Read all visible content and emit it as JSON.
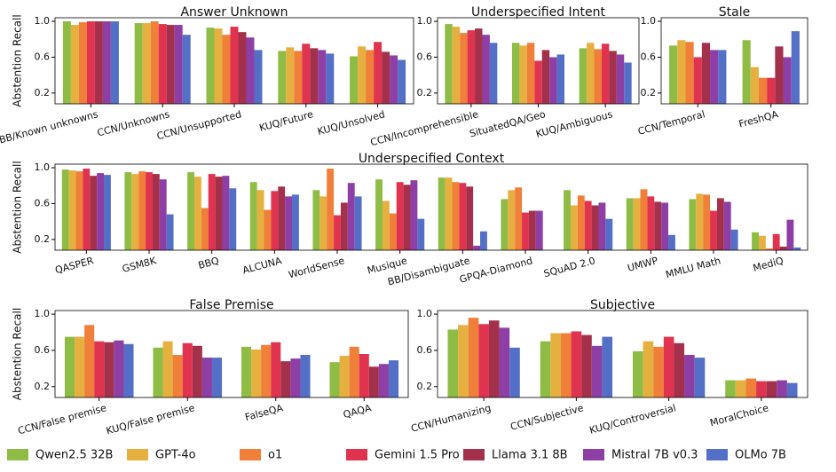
{
  "legend": [
    {
      "name": "Qwen2.5 32B",
      "color": "#8fbc45"
    },
    {
      "name": "GPT-4o",
      "color": "#e6b040"
    },
    {
      "name": "o1",
      "color": "#f07f3a"
    },
    {
      "name": "Gemini 1.5 Pro",
      "color": "#e0334f"
    },
    {
      "name": "Llama 3.1 8B",
      "color": "#a3314b"
    },
    {
      "name": "Mistral 7B v0.3",
      "color": "#8e3fa5"
    },
    {
      "name": "OLMo 7B",
      "color": "#5470c6"
    }
  ],
  "chart_data": [
    {
      "type": "bar",
      "title": "Answer Unknown",
      "ylabel": "Abstention Recall",
      "categories": [
        "BB/Known unknowns",
        "CCN/Unknowns",
        "CCN/Unsupported",
        "KUQ/Future",
        "KUQ/Unsolved"
      ],
      "ylim": [
        0.08,
        1.04
      ],
      "yticks": [
        0.2,
        0.6,
        {
          "value": 1,
          "label": "1.0"
        }
      ],
      "series": [
        {
          "values": [
            1.0,
            0.98,
            0.93,
            0.67,
            0.61
          ]
        },
        {
          "values": [
            0.96,
            0.98,
            0.92,
            0.71,
            0.72
          ]
        },
        {
          "values": [
            0.99,
            1.0,
            0.85,
            0.67,
            0.68
          ]
        },
        {
          "values": [
            1.0,
            0.97,
            0.94,
            0.75,
            0.77
          ]
        },
        {
          "values": [
            1.0,
            0.96,
            0.88,
            0.7,
            0.66
          ]
        },
        {
          "values": [
            1.0,
            0.96,
            0.82,
            0.68,
            0.62
          ]
        },
        {
          "values": [
            1.0,
            0.85,
            0.68,
            0.64,
            0.57
          ]
        }
      ]
    },
    {
      "type": "bar",
      "title": "Underspecified Intent",
      "categories": [
        "CCN/Incomprehensible",
        "SituatedQA/Geo",
        "KUQ/Ambiguous"
      ],
      "ylim": [
        0.08,
        1.04
      ],
      "yticks": [
        0.2,
        0.6,
        {
          "value": 1,
          "label": "1.0"
        }
      ],
      "series": [
        {
          "values": [
            0.97,
            0.76,
            0.7
          ]
        },
        {
          "values": [
            0.94,
            0.73,
            0.76
          ]
        },
        {
          "values": [
            0.87,
            0.76,
            0.69
          ]
        },
        {
          "values": [
            0.9,
            0.56,
            0.75
          ]
        },
        {
          "values": [
            0.92,
            0.68,
            0.67
          ]
        },
        {
          "values": [
            0.85,
            0.6,
            0.63
          ]
        },
        {
          "values": [
            0.76,
            0.63,
            0.54
          ]
        }
      ]
    },
    {
      "type": "bar",
      "title": "Stale",
      "categories": [
        "CCN/Temporal",
        "FreshQA"
      ],
      "ylim": [
        0.08,
        1.04
      ],
      "yticks": [
        0.2,
        0.6,
        {
          "value": 1,
          "label": "1.0"
        }
      ],
      "series": [
        {
          "values": [
            0.73,
            0.79
          ]
        },
        {
          "values": [
            0.79,
            0.49
          ]
        },
        {
          "values": [
            0.77,
            0.37
          ]
        },
        {
          "values": [
            0.6,
            0.37
          ]
        },
        {
          "values": [
            0.76,
            0.72
          ]
        },
        {
          "values": [
            0.68,
            0.6
          ]
        },
        {
          "values": [
            0.68,
            0.89
          ]
        }
      ]
    },
    {
      "type": "bar",
      "title": "Underspecified Context",
      "ylabel": "Abstention Recall",
      "categories": [
        "QASPER",
        "GSM8K",
        "BBQ",
        "ALCUNA",
        "WorldSense",
        "Musique",
        "BB/Disambiguate",
        "GPQA-Diamond",
        "SQuAD 2.0",
        "UMWP",
        "MMLU Math",
        "MediQ"
      ],
      "ylim": [
        0.08,
        1.04
      ],
      "yticks": [
        0.2,
        0.6,
        {
          "value": 1,
          "label": "1.0"
        }
      ],
      "series": [
        {
          "values": [
            0.98,
            0.95,
            0.95,
            0.84,
            0.75,
            0.87,
            0.89,
            0.65,
            0.75,
            0.66,
            0.65,
            0.28
          ]
        },
        {
          "values": [
            0.97,
            0.93,
            0.9,
            0.75,
            0.68,
            0.63,
            0.89,
            0.75,
            0.58,
            0.66,
            0.71,
            0.24
          ]
        },
        {
          "values": [
            0.96,
            0.96,
            0.55,
            0.53,
            0.99,
            0.49,
            0.84,
            0.78,
            0.69,
            0.76,
            0.7,
            0.1
          ]
        },
        {
          "values": [
            0.99,
            0.95,
            0.93,
            0.74,
            0.47,
            0.84,
            0.83,
            0.5,
            0.63,
            0.68,
            0.52,
            0.26
          ]
        },
        {
          "values": [
            0.91,
            0.93,
            0.9,
            0.79,
            0.61,
            0.81,
            0.79,
            0.52,
            0.58,
            0.62,
            0.66,
            0.12
          ]
        },
        {
          "values": [
            0.94,
            0.87,
            0.91,
            0.68,
            0.83,
            0.86,
            0.13,
            0.52,
            0.61,
            0.61,
            0.62,
            0.42
          ]
        },
        {
          "values": [
            0.92,
            0.48,
            0.77,
            0.7,
            0.68,
            0.43,
            0.29,
            null,
            0.43,
            0.25,
            0.31,
            0.11
          ]
        }
      ]
    },
    {
      "type": "bar",
      "title": "False Premise",
      "ylabel": "Abstention Recall",
      "categories": [
        "CCN/False premise",
        "KUQ/False premise",
        "FalseQA",
        "QAQA"
      ],
      "ylim": [
        0.08,
        1.04
      ],
      "yticks": [
        0.2,
        0.6,
        {
          "value": 1,
          "label": "1.0"
        }
      ],
      "series": [
        {
          "values": [
            0.75,
            0.63,
            0.64,
            0.47
          ]
        },
        {
          "values": [
            0.75,
            0.7,
            0.61,
            0.54
          ]
        },
        {
          "values": [
            0.88,
            0.55,
            0.66,
            0.64
          ]
        },
        {
          "values": [
            0.7,
            0.68,
            0.69,
            0.56
          ]
        },
        {
          "values": [
            0.69,
            0.65,
            0.48,
            0.42
          ]
        },
        {
          "values": [
            0.71,
            0.52,
            0.51,
            0.45
          ]
        },
        {
          "values": [
            0.67,
            0.52,
            0.55,
            0.49
          ]
        }
      ]
    },
    {
      "type": "bar",
      "title": "Subjective",
      "categories": [
        "CCN/Humanizing",
        "CCN/Subjective",
        "KUQ/Controversial",
        "MoralChoice"
      ],
      "ylim": [
        0.08,
        1.04
      ],
      "yticks": [
        0.2,
        0.6,
        {
          "value": 1,
          "label": "1.0"
        }
      ],
      "series": [
        {
          "values": [
            0.83,
            0.7,
            0.59,
            0.27
          ]
        },
        {
          "values": [
            0.88,
            0.79,
            0.7,
            0.27
          ]
        },
        {
          "values": [
            0.96,
            0.79,
            0.64,
            0.29
          ]
        },
        {
          "values": [
            0.89,
            0.81,
            0.75,
            0.26
          ]
        },
        {
          "values": [
            0.93,
            0.77,
            0.68,
            0.26
          ]
        },
        {
          "values": [
            0.85,
            0.65,
            0.55,
            0.27
          ]
        },
        {
          "values": [
            0.63,
            0.75,
            0.52,
            0.24
          ]
        }
      ]
    }
  ]
}
